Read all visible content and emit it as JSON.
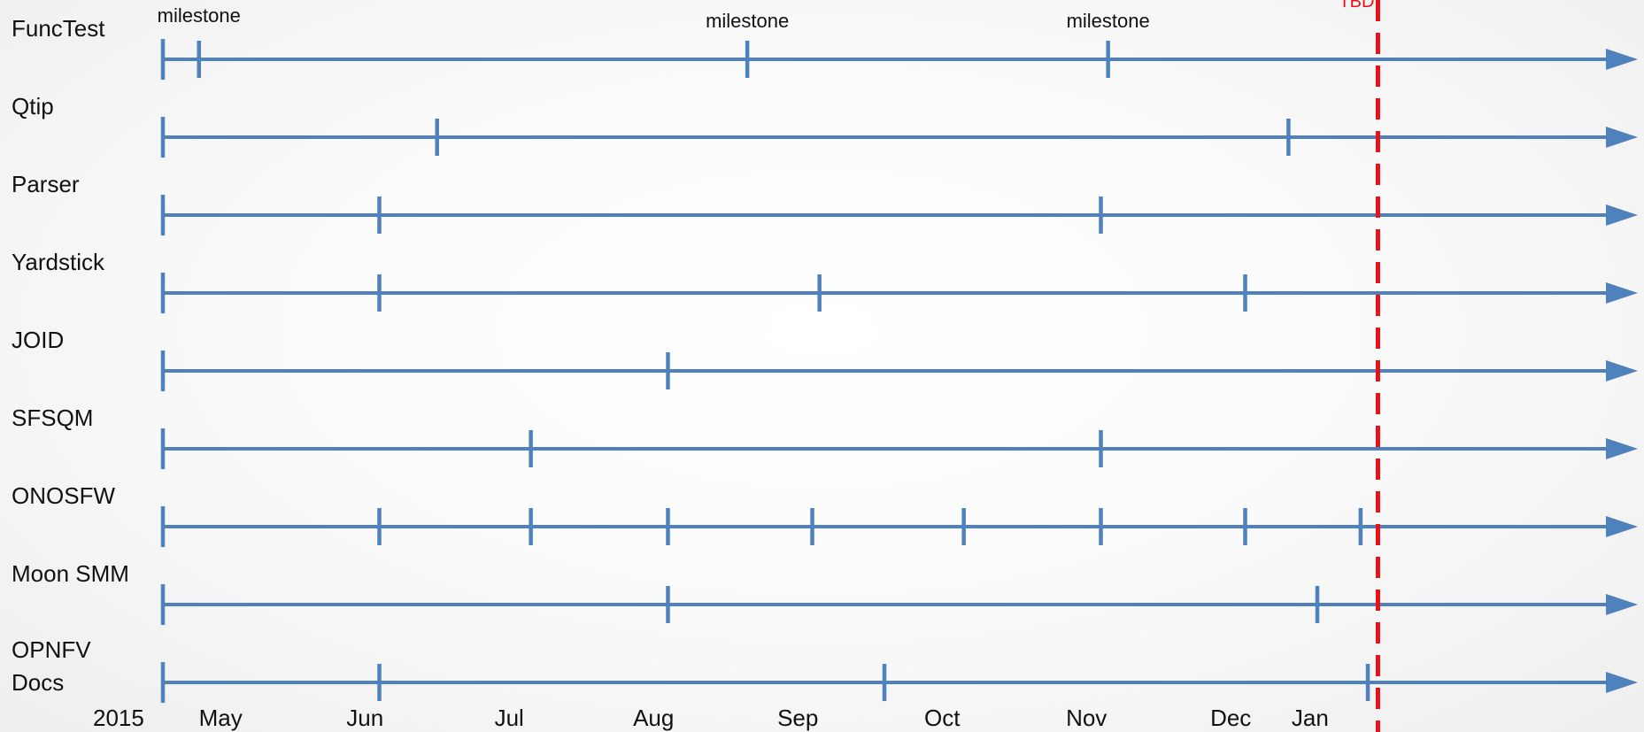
{
  "chart_data": {
    "type": "timeline",
    "year_label": "2015",
    "months": [
      "May",
      "Jun",
      "Jul",
      "Aug",
      "Sep",
      "Oct",
      "Nov",
      "Dec",
      "Jan"
    ],
    "x_range": [
      0.0,
      8.55
    ],
    "deadline": {
      "label": "TBD",
      "value": 8.42,
      "color": "#e8111a"
    },
    "line_color": "#4f81bd",
    "rows": [
      {
        "name": "FuncTest",
        "start": 0.0,
        "ticks": [
          0.25,
          4.05,
          6.55
        ]
      },
      {
        "name": "Qtip",
        "start": 0.0,
        "ticks": [
          1.9,
          7.8
        ]
      },
      {
        "name": "Parser",
        "start": 0.0,
        "ticks": [
          1.5,
          6.5
        ]
      },
      {
        "name": "Yardstick",
        "start": 0.0,
        "ticks": [
          1.5,
          4.55,
          7.5
        ]
      },
      {
        "name": "JOID",
        "start": 0.0,
        "ticks": [
          3.5
        ]
      },
      {
        "name": "SFSQM",
        "start": 0.0,
        "ticks": [
          2.55,
          6.5
        ]
      },
      {
        "name": "ONOSFW",
        "start": 0.0,
        "ticks": [
          1.5,
          2.55,
          3.5,
          4.5,
          5.55,
          6.5,
          7.5,
          8.3
        ]
      },
      {
        "name": "Moon SMM",
        "start": 0.0,
        "ticks": [
          3.5,
          8.0
        ]
      },
      {
        "name": "OPNFV Docs",
        "start": 0.0,
        "ticks": [
          1.5,
          5.0,
          8.35
        ]
      }
    ],
    "annotations": [
      {
        "text": "milestone",
        "row": 0,
        "value": 0.25
      },
      {
        "text": "milestone",
        "row": 0,
        "value": 4.05
      },
      {
        "text": "milestone",
        "row": 0,
        "value": 6.55
      }
    ]
  }
}
